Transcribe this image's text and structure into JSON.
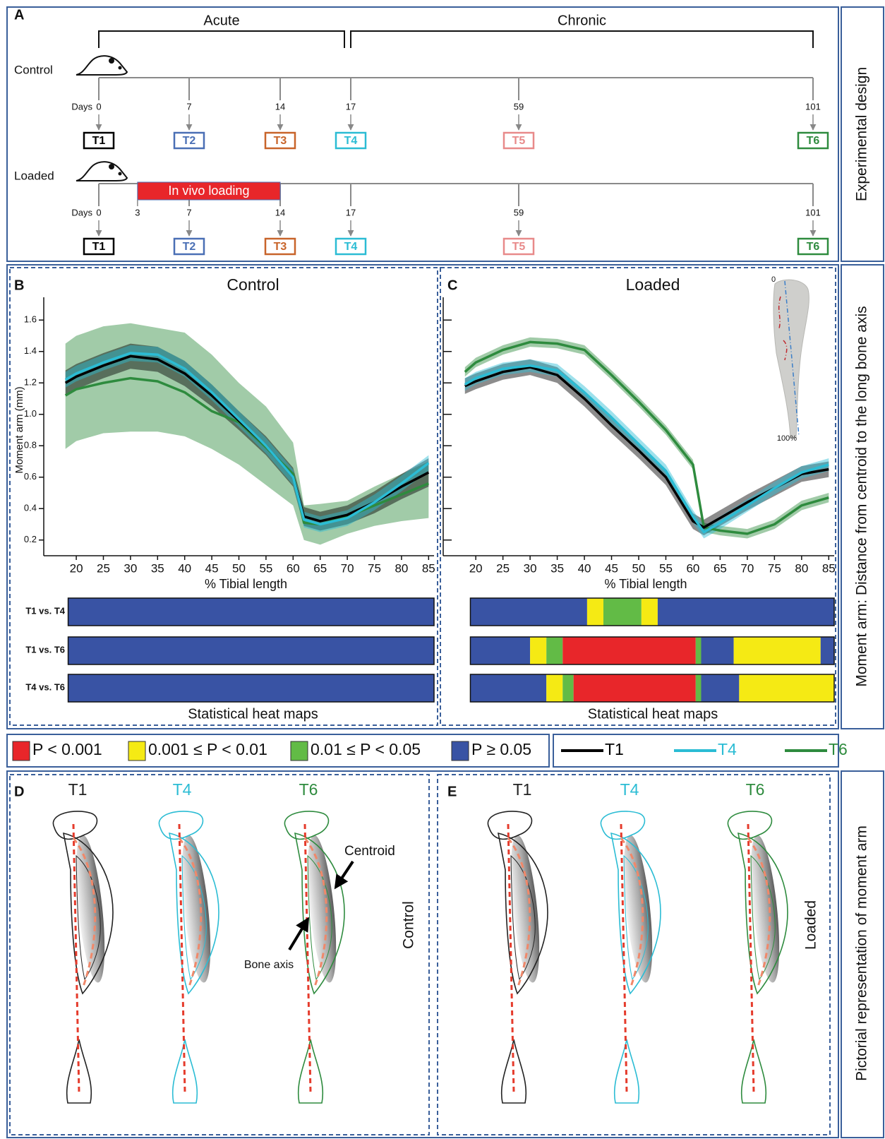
{
  "panel_labels": [
    "A",
    "B",
    "C",
    "D",
    "E"
  ],
  "side_labels": [
    "Experimental design",
    "Moment arm: Distance from centroid to the long bone axis",
    "Pictorial representation of moment arm"
  ],
  "timeline": {
    "phases": [
      "Acute",
      "Chronic"
    ],
    "colors": [
      "#000000",
      "#4a6fb5",
      "#c8642a",
      "#2bbcd4",
      "#e88a8a",
      "#2e8b3e"
    ],
    "rows": [
      {
        "label": "Control",
        "days_label": "Days",
        "days": [
          0,
          7,
          14,
          17,
          59,
          101
        ],
        "timepoints": [
          "T1",
          "T2",
          "T3",
          "T4",
          "T5",
          "T6"
        ]
      },
      {
        "label": "Loaded",
        "days_label": "Days",
        "days": [
          0,
          7,
          14,
          17,
          59,
          101
        ],
        "timepoints": [
          "T1",
          "T2",
          "T3",
          "T4",
          "T5",
          "T6"
        ],
        "loading": {
          "label": "In vivo loading",
          "start": 3,
          "end": 14
        }
      }
    ]
  },
  "chart_data": [
    {
      "type": "line",
      "title": "Control",
      "xlabel": "% Tibial length",
      "ylabel": "Moment arm (mm)",
      "x": [
        18,
        20,
        25,
        30,
        35,
        40,
        45,
        50,
        55,
        60,
        62,
        65,
        70,
        75,
        80,
        85
      ],
      "series": [
        {
          "color": "#2e8b3e",
          "values": [
            1.12,
            1.16,
            1.2,
            1.23,
            1.21,
            1.14,
            1.02,
            0.95,
            0.79,
            0.62,
            0.31,
            0.3,
            0.35,
            0.42,
            0.49,
            0.56
          ],
          "lower": [
            0.78,
            0.83,
            0.88,
            0.89,
            0.89,
            0.86,
            0.78,
            0.68,
            0.55,
            0.42,
            0.2,
            0.17,
            0.24,
            0.29,
            0.32,
            0.34
          ],
          "upper": [
            1.45,
            1.5,
            1.56,
            1.58,
            1.55,
            1.52,
            1.38,
            1.2,
            1.05,
            0.82,
            0.42,
            0.43,
            0.45,
            0.54,
            0.62,
            0.7
          ]
        },
        {
          "color": "#000000",
          "values": [
            1.2,
            1.24,
            1.31,
            1.37,
            1.35,
            1.26,
            1.12,
            0.96,
            0.8,
            0.6,
            0.35,
            0.32,
            0.36,
            0.44,
            0.54,
            0.63
          ],
          "lower": [
            1.12,
            1.16,
            1.23,
            1.29,
            1.27,
            1.18,
            1.05,
            0.9,
            0.74,
            0.54,
            0.29,
            0.26,
            0.3,
            0.37,
            0.46,
            0.54
          ],
          "upper": [
            1.28,
            1.32,
            1.39,
            1.45,
            1.43,
            1.34,
            1.19,
            1.02,
            0.86,
            0.66,
            0.41,
            0.38,
            0.42,
            0.51,
            0.62,
            0.72
          ]
        },
        {
          "color": "#2bbcd4",
          "values": [
            1.22,
            1.26,
            1.33,
            1.39,
            1.38,
            1.29,
            1.14,
            0.97,
            0.8,
            0.6,
            0.33,
            0.3,
            0.34,
            0.44,
            0.56,
            0.69
          ],
          "lower": [
            1.17,
            1.21,
            1.28,
            1.34,
            1.33,
            1.24,
            1.09,
            0.92,
            0.75,
            0.55,
            0.28,
            0.25,
            0.29,
            0.39,
            0.51,
            0.64
          ],
          "upper": [
            1.27,
            1.31,
            1.38,
            1.44,
            1.43,
            1.34,
            1.19,
            1.02,
            0.85,
            0.65,
            0.38,
            0.35,
            0.39,
            0.49,
            0.61,
            0.74
          ]
        }
      ],
      "xlim": [
        14,
        86
      ],
      "ylim": [
        0.1,
        1.7
      ],
      "xticks": [
        20,
        25,
        30,
        35,
        40,
        45,
        50,
        55,
        60,
        65,
        70,
        75,
        80,
        85
      ],
      "yticks": [
        0.2,
        0.4,
        0.6,
        0.8,
        {
          "value": 1,
          "label": "1.0"
        },
        1.2,
        1.4,
        1.6
      ],
      "heatmap": {
        "title": "Statistical heat maps",
        "rows": [
          {
            "label": "T1 vs. T4",
            "segments": [
              {
                "start": 18.5,
                "end": 86,
                "level": 3
              }
            ]
          },
          {
            "label": "T1 vs. T6",
            "segments": [
              {
                "start": 18.5,
                "end": 86,
                "level": 3
              }
            ]
          },
          {
            "label": "T4 vs. T6",
            "segments": [
              {
                "start": 18.5,
                "end": 86,
                "level": 3
              }
            ]
          }
        ]
      }
    },
    {
      "type": "line",
      "title": "Loaded",
      "xlabel": "% Tibial length",
      "x": [
        18,
        20,
        25,
        30,
        35,
        40,
        45,
        50,
        55,
        60,
        62,
        65,
        70,
        75,
        80,
        85
      ],
      "series": [
        {
          "color": "#2e8b3e",
          "values": [
            1.27,
            1.33,
            1.41,
            1.46,
            1.45,
            1.41,
            1.25,
            1.08,
            0.9,
            0.68,
            0.28,
            0.26,
            0.24,
            0.3,
            0.42,
            0.47
          ],
          "lower": [
            1.24,
            1.3,
            1.38,
            1.43,
            1.42,
            1.38,
            1.22,
            1.05,
            0.87,
            0.65,
            0.25,
            0.23,
            0.21,
            0.27,
            0.39,
            0.44
          ],
          "upper": [
            1.3,
            1.36,
            1.44,
            1.49,
            1.48,
            1.44,
            1.28,
            1.11,
            0.93,
            0.71,
            0.31,
            0.29,
            0.27,
            0.33,
            0.45,
            0.5
          ]
        },
        {
          "color": "#000000",
          "values": [
            1.18,
            1.21,
            1.27,
            1.3,
            1.25,
            1.1,
            0.93,
            0.77,
            0.6,
            0.32,
            0.28,
            0.34,
            0.44,
            0.53,
            0.62,
            0.65
          ],
          "lower": [
            1.13,
            1.16,
            1.22,
            1.25,
            1.2,
            1.05,
            0.88,
            0.72,
            0.55,
            0.27,
            0.23,
            0.29,
            0.39,
            0.48,
            0.57,
            0.6
          ],
          "upper": [
            1.23,
            1.26,
            1.32,
            1.35,
            1.3,
            1.15,
            0.98,
            0.82,
            0.65,
            0.37,
            0.33,
            0.39,
            0.49,
            0.58,
            0.67,
            0.7
          ]
        },
        {
          "color": "#2bbcd4",
          "values": [
            1.19,
            1.23,
            1.29,
            1.31,
            1.28,
            1.14,
            0.98,
            0.81,
            0.64,
            0.35,
            0.25,
            0.31,
            0.42,
            0.53,
            0.63,
            0.68
          ],
          "lower": [
            1.15,
            1.19,
            1.25,
            1.27,
            1.24,
            1.1,
            0.94,
            0.77,
            0.6,
            0.31,
            0.21,
            0.27,
            0.38,
            0.49,
            0.59,
            0.64
          ],
          "upper": [
            1.23,
            1.27,
            1.33,
            1.35,
            1.32,
            1.18,
            1.02,
            0.85,
            0.68,
            0.39,
            0.29,
            0.35,
            0.46,
            0.57,
            0.67,
            0.72
          ]
        }
      ],
      "xlim": [
        14,
        86
      ],
      "ylim": [
        0.1,
        1.7
      ],
      "xticks": [
        20,
        25,
        30,
        35,
        40,
        45,
        50,
        55,
        60,
        65,
        70,
        75,
        80,
        85
      ],
      "yticks": [
        0.2,
        0.4,
        0.6,
        0.8,
        1,
        1.2,
        1.4,
        1.6
      ],
      "ytick_labels": false,
      "inset": {
        "top": "0",
        "bottom": "100%"
      },
      "heatmap": {
        "title": "Statistical heat maps",
        "rows": [
          {
            "segments": [
              {
                "start": 19,
                "end": 40.5,
                "level": 3
              },
              {
                "start": 40.5,
                "end": 43.5,
                "level": 1
              },
              {
                "start": 43.5,
                "end": 50.5,
                "level": 2
              },
              {
                "start": 50.5,
                "end": 53.5,
                "level": 1
              },
              {
                "start": 53.5,
                "end": 86,
                "level": 3
              }
            ]
          },
          {
            "segments": [
              {
                "start": 19,
                "end": 30,
                "level": 3
              },
              {
                "start": 30,
                "end": 33,
                "level": 1
              },
              {
                "start": 33,
                "end": 36,
                "level": 2
              },
              {
                "start": 36,
                "end": 60.5,
                "level": 0
              },
              {
                "start": 60.5,
                "end": 61.5,
                "level": 2
              },
              {
                "start": 61.5,
                "end": 67.5,
                "level": 3
              },
              {
                "start": 67.5,
                "end": 83.5,
                "level": 1
              },
              {
                "start": 83.5,
                "end": 86,
                "level": 3
              }
            ]
          },
          {
            "segments": [
              {
                "start": 19,
                "end": 33,
                "level": 3
              },
              {
                "start": 33,
                "end": 36,
                "level": 1
              },
              {
                "start": 36,
                "end": 38,
                "level": 2
              },
              {
                "start": 38,
                "end": 60.5,
                "level": 0
              },
              {
                "start": 60.5,
                "end": 61.5,
                "level": 2
              },
              {
                "start": 61.5,
                "end": 68.5,
                "level": 3
              },
              {
                "start": 68.5,
                "end": 86,
                "level": 1
              }
            ]
          }
        ]
      }
    }
  ],
  "p_legend": {
    "levels": [
      {
        "label": "P < 0.001",
        "color": "#e8262a"
      },
      {
        "label": "0.001 ≤ P < 0.01",
        "color": "#f5ea14"
      },
      {
        "label": "0.01 ≤ P < 0.05",
        "color": "#62bb46"
      },
      {
        "label": "P ≥ 0.05",
        "color": "#3953a4"
      }
    ]
  },
  "legend": {
    "entries": [
      {
        "name": "T1",
        "color": "#000000"
      },
      {
        "name": "T4",
        "color": "#2bbcd4"
      },
      {
        "name": "T6",
        "color": "#2e8b3e"
      }
    ]
  },
  "pictorial": {
    "panels": [
      {
        "group": "Control",
        "labels": [
          {
            "text": "T1",
            "color": "#222222"
          },
          {
            "text": "T4",
            "color": "#2bbcd4"
          },
          {
            "text": "T6",
            "color": "#2e8b3e"
          }
        ],
        "annotations": [
          "Centroid",
          "Bone axis"
        ]
      },
      {
        "group": "Loaded",
        "labels": [
          {
            "text": "T1",
            "color": "#222222"
          },
          {
            "text": "T4",
            "color": "#2bbcd4"
          },
          {
            "text": "T6",
            "color": "#2e8b3e"
          }
        ]
      }
    ]
  }
}
